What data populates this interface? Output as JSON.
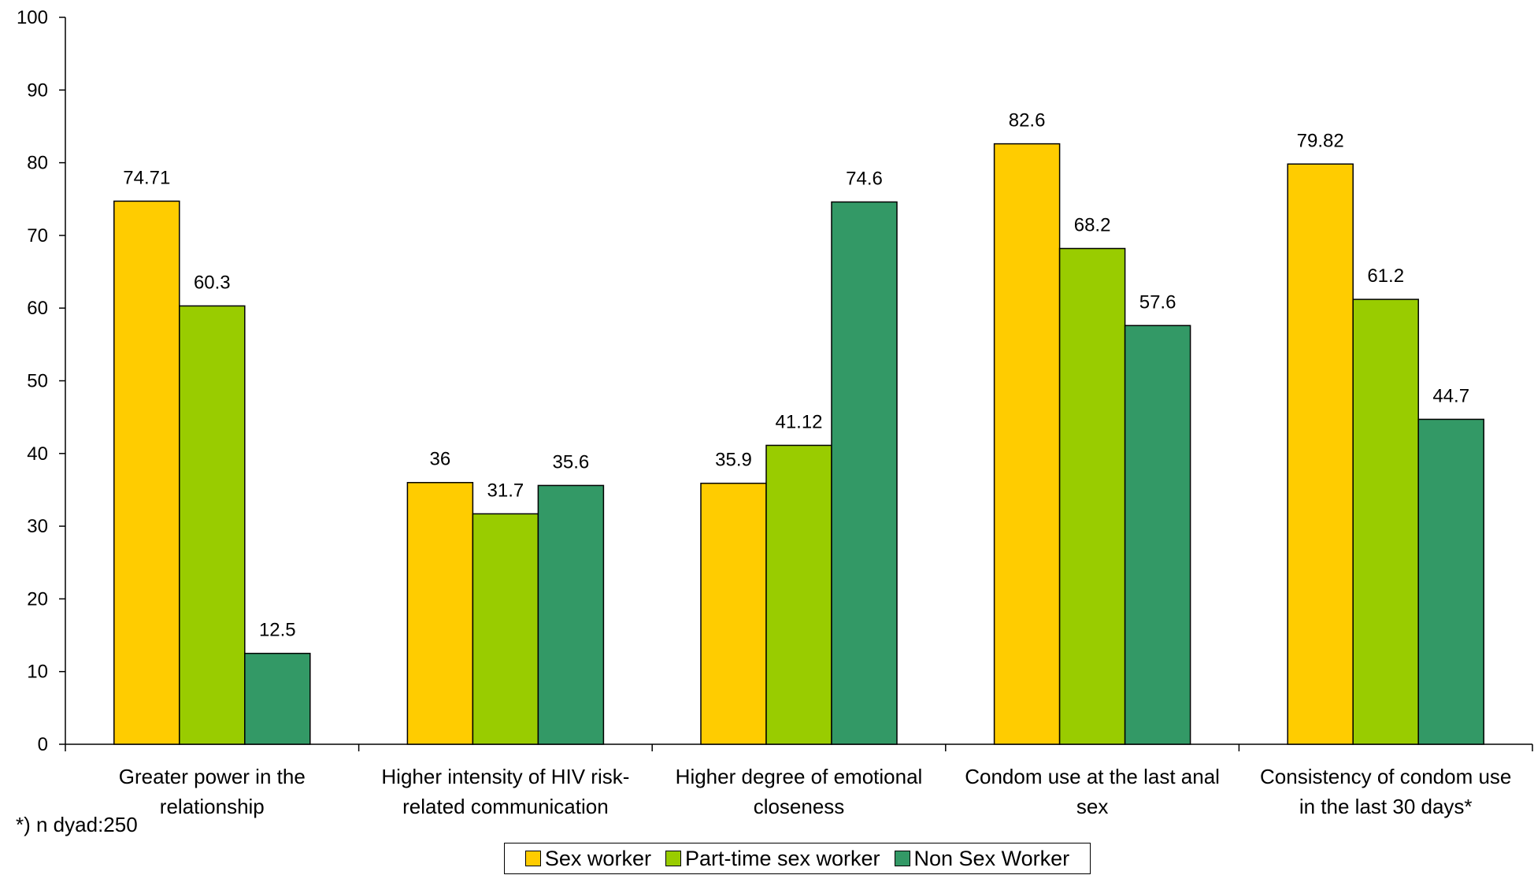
{
  "chart_data": {
    "type": "bar",
    "categories": [
      [
        "Greater power in the",
        "relationship"
      ],
      [
        "Higher intensity of HIV risk-",
        "related communication"
      ],
      [
        "Higher degree of emotional",
        "closeness"
      ],
      [
        "Condom use at the last anal",
        "sex"
      ],
      [
        "Consistency of condom use",
        "in the last 30 days*"
      ]
    ],
    "series": [
      {
        "name": "Sex worker",
        "color": "#FFCC00",
        "values": [
          74.71,
          36,
          35.9,
          82.6,
          79.82
        ],
        "labels": [
          "74.71",
          "36",
          "35.9",
          "82.6",
          "79.82"
        ]
      },
      {
        "name": "Part-time sex worker",
        "color": "#99CC00",
        "values": [
          60.3,
          31.7,
          41.12,
          68.2,
          61.2
        ],
        "labels": [
          "60.3",
          "31.7",
          "41.12",
          "68.2",
          "61.2"
        ]
      },
      {
        "name": "Non Sex Worker",
        "color": "#339966",
        "values": [
          12.5,
          35.6,
          74.6,
          57.6,
          44.7
        ],
        "labels": [
          "12.5",
          "35.6",
          "74.6",
          "57.6",
          "44.7"
        ]
      }
    ],
    "ylim": [
      0,
      100
    ],
    "yticks": [
      0,
      10,
      20,
      30,
      40,
      50,
      60,
      70,
      80,
      90,
      100
    ],
    "grid": false,
    "legend_position": "bottom",
    "footnote": "*) n dyad:250"
  }
}
